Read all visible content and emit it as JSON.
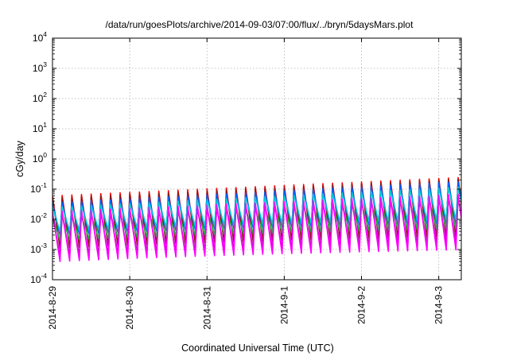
{
  "chart_data": {
    "type": "line",
    "title": "/data/run/goesPlots/archive/2014-09-03/07:00/flux/../bryn/5daysMars.plot",
    "xlabel": "Coordinated Universal Time (UTC)",
    "ylabel": "cGy/day",
    "y_scale": "log",
    "ylim": [
      0.0001,
      10000
    ],
    "y_ticks": [
      {
        "value": 0.0001,
        "base": "10",
        "exp": "-4"
      },
      {
        "value": 0.001,
        "base": "10",
        "exp": "-3"
      },
      {
        "value": 0.01,
        "base": "10",
        "exp": "-2"
      },
      {
        "value": 0.1,
        "base": "10",
        "exp": "-1"
      },
      {
        "value": 1,
        "base": "10",
        "exp": "0"
      },
      {
        "value": 10,
        "base": "10",
        "exp": "1"
      },
      {
        "value": 100,
        "base": "10",
        "exp": "2"
      },
      {
        "value": 1000,
        "base": "10",
        "exp": "3"
      },
      {
        "value": 10000,
        "base": "10",
        "exp": "4"
      }
    ],
    "x_range": [
      "2014-08-29T00:00",
      "2014-09-03T07:00"
    ],
    "x_ticks": [
      "2014-8-29",
      "2014-8-30",
      "2014-8-31",
      "2014-9-1",
      "2014-9-2",
      "2014-9-3"
    ],
    "grid": true,
    "legend": "none",
    "cycle_hours": 3,
    "series": [
      {
        "color": "#ff0000",
        "first_peak_value": 0.06,
        "last_peak_value": 0.25,
        "trough_value": 0.0012
      },
      {
        "color": "#8b1a1a",
        "first_peak_value": 0.05,
        "last_peak_value": 0.22,
        "trough_value": 0.0011
      },
      {
        "color": "#0060ff",
        "first_peak_value": 0.035,
        "last_peak_value": 0.18,
        "trough_value": 0.003
      },
      {
        "color": "#00c8d8",
        "first_peak_value": 0.025,
        "last_peak_value": 0.12,
        "trough_value": 0.004
      },
      {
        "color": "#20b040",
        "first_peak_value": 0.012,
        "last_peak_value": 0.05,
        "trough_value": 0.002
      },
      {
        "color": "#c000c0",
        "first_peak_value": 0.015,
        "last_peak_value": 0.06,
        "trough_value": 0.0006
      },
      {
        "color": "#ff00ff",
        "first_peak_value": 0.018,
        "last_peak_value": 0.07,
        "trough_value": 0.0004
      }
    ]
  }
}
